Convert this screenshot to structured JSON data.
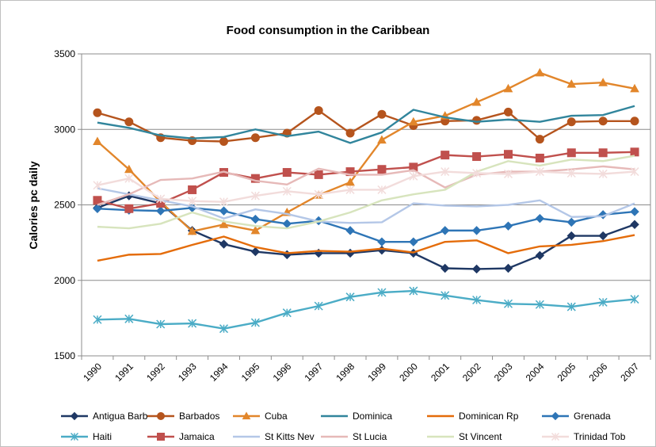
{
  "chart_data": {
    "type": "line",
    "title": "Food consumption in the Caribbean",
    "xlabel": "",
    "ylabel": "Calories pc daily",
    "ylim": [
      1500,
      3500
    ],
    "yticks": [
      1500,
      2000,
      2500,
      3000,
      3500
    ],
    "grid": "horizontal",
    "legend_position": "bottom",
    "categories": [
      "1990",
      "1991",
      "1992",
      "1993",
      "1994",
      "1995",
      "1996",
      "1997",
      "1998",
      "1999",
      "2000",
      "2001",
      "2002",
      "2003",
      "2004",
      "2005",
      "2006",
      "2007"
    ],
    "series": [
      {
        "name": "Antigua Barb",
        "color": "#1f3864",
        "marker": "diamond",
        "values": [
          2480,
          2560,
          2510,
          2330,
          2240,
          2190,
          2170,
          2180,
          2180,
          2200,
          2180,
          2080,
          2075,
          2080,
          2165,
          2295,
          2295,
          2370
        ]
      },
      {
        "name": "Barbados",
        "color": "#b5541d",
        "marker": "circle",
        "values": [
          3110,
          3050,
          2945,
          2925,
          2920,
          2945,
          2975,
          3125,
          2975,
          3100,
          3025,
          3055,
          3060,
          3115,
          2935,
          3050,
          3055,
          3055
        ]
      },
      {
        "name": "Cuba",
        "color": "#e2862b",
        "marker": "triangle",
        "values": [
          2920,
          2735,
          2520,
          2325,
          2370,
          2330,
          2450,
          2565,
          2650,
          2930,
          3050,
          3090,
          3180,
          3270,
          3375,
          3300,
          3310,
          3270
        ]
      },
      {
        "name": "Dominica",
        "color": "#31859c",
        "marker": "none",
        "values": [
          3045,
          3010,
          2960,
          2940,
          2950,
          3000,
          2955,
          2985,
          2910,
          2980,
          3130,
          3080,
          3050,
          3065,
          3050,
          3090,
          3095,
          3155
        ]
      },
      {
        "name": "Dominican Rp",
        "color": "#e46c0a",
        "marker": "none",
        "values": [
          2130,
          2170,
          2175,
          2235,
          2290,
          2220,
          2180,
          2195,
          2190,
          2210,
          2185,
          2255,
          2265,
          2180,
          2225,
          2235,
          2260,
          2300
        ]
      },
      {
        "name": "Grenada",
        "color": "#2e75b6",
        "marker": "diamond",
        "values": [
          2475,
          2465,
          2460,
          2480,
          2460,
          2405,
          2375,
          2395,
          2330,
          2255,
          2255,
          2330,
          2330,
          2360,
          2410,
          2385,
          2435,
          2455
        ]
      },
      {
        "name": "Haiti",
        "color": "#4bacc6",
        "marker": "asterisk",
        "values": [
          1740,
          1745,
          1710,
          1715,
          1680,
          1720,
          1785,
          1830,
          1890,
          1920,
          1930,
          1900,
          1870,
          1845,
          1840,
          1825,
          1855,
          1875
        ]
      },
      {
        "name": "Jamaica",
        "color": "#c0504d",
        "marker": "square",
        "values": [
          2530,
          2475,
          2510,
          2600,
          2715,
          2675,
          2715,
          2700,
          2720,
          2735,
          2750,
          2830,
          2820,
          2835,
          2810,
          2845,
          2845,
          2850
        ]
      },
      {
        "name": "St Kitts Nev",
        "color": "#b4c7e7",
        "marker": "none",
        "values": [
          2610,
          2570,
          2530,
          2490,
          2410,
          2470,
          2440,
          2390,
          2380,
          2385,
          2510,
          2495,
          2490,
          2500,
          2530,
          2420,
          2425,
          2510
        ]
      },
      {
        "name": "St Lucia",
        "color": "#e6b9b8",
        "marker": "none",
        "values": [
          2500,
          2570,
          2665,
          2675,
          2720,
          2660,
          2635,
          2740,
          2700,
          2700,
          2730,
          2615,
          2700,
          2720,
          2720,
          2735,
          2755,
          2735
        ]
      },
      {
        "name": "St Vincent",
        "color": "#d7e4bd",
        "marker": "none",
        "values": [
          2355,
          2345,
          2375,
          2450,
          2390,
          2360,
          2345,
          2390,
          2450,
          2530,
          2570,
          2600,
          2720,
          2790,
          2760,
          2800,
          2790,
          2825
        ]
      },
      {
        "name": "Trinidad Tob",
        "color": "#f2dcdb",
        "marker": "asterisk",
        "values": [
          2630,
          2675,
          2540,
          2525,
          2520,
          2560,
          2590,
          2570,
          2600,
          2600,
          2690,
          2720,
          2710,
          2705,
          2720,
          2710,
          2705,
          2720
        ]
      }
    ]
  }
}
